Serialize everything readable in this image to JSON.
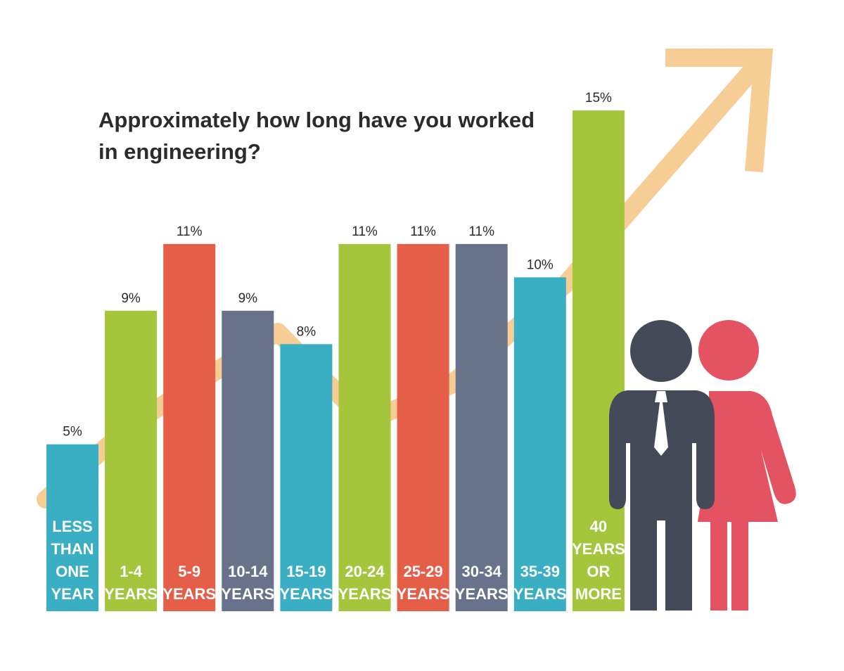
{
  "chart_data": {
    "type": "bar",
    "title_lines": [
      "Approximately how long have you worked",
      "in engineering?"
    ],
    "categories": [
      [
        "LESS",
        "THAN",
        "ONE",
        "YEAR"
      ],
      [
        "1-4",
        "YEARS"
      ],
      [
        "5-9",
        "YEARS"
      ],
      [
        "10-14",
        "YEARS"
      ],
      [
        "15-19",
        "YEARS"
      ],
      [
        "20-24",
        "YEARS"
      ],
      [
        "25-29",
        "YEARS"
      ],
      [
        "30-34",
        "YEARS"
      ],
      [
        "35-39",
        "YEARS"
      ],
      [
        "40",
        "YEARS",
        "OR",
        "MORE"
      ]
    ],
    "values": [
      5,
      9,
      11,
      9,
      8,
      11,
      11,
      11,
      10,
      15
    ],
    "value_labels": [
      "5%",
      "9%",
      "11%",
      "9%",
      "8%",
      "11%",
      "11%",
      "11%",
      "10%",
      "15%"
    ],
    "bar_colors": [
      "#3aaec2",
      "#a5c53c",
      "#e45e48",
      "#69728b",
      "#3aaec2",
      "#a5c53c",
      "#e45e48",
      "#69728b",
      "#3aaec2",
      "#a5c53c"
    ],
    "ylim": [
      0,
      15
    ],
    "grid": false,
    "legend": "none",
    "decoration": {
      "trend_arrow_color": "#f7cd96",
      "man_icon": "businessman-icon",
      "man_color": "#454a59",
      "woman_icon": "businesswoman-icon",
      "woman_color": "#e45361"
    }
  }
}
